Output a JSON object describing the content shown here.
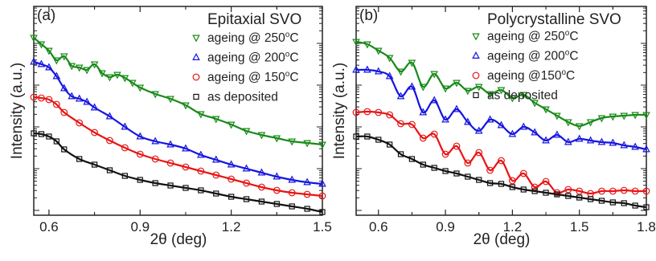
{
  "chart_data": [
    {
      "type": "line",
      "panel_tag": "(a)",
      "title": "Epitaxial SVO",
      "xlabel": "2θ (deg)",
      "ylabel": "Intensity (a.u.)",
      "y_scale": "log",
      "y_ticklabels": "none",
      "xlim": [
        0.55,
        1.5
      ],
      "xticks": [
        0.6,
        0.9,
        1.2,
        1.5
      ],
      "xtick_labels": [
        "0.6",
        "0.9",
        "1.2",
        "1.5"
      ],
      "legend_position": "top-right",
      "series": [
        {
          "name": "ageing @ 250°C",
          "label_main": "ageing @ 250",
          "label_sup": "o",
          "label_tail": "C",
          "color": "#178a17",
          "marker": "triangle-down",
          "x": [
            0.55,
            0.575,
            0.6,
            0.625,
            0.65,
            0.675,
            0.7,
            0.725,
            0.75,
            0.775,
            0.8,
            0.825,
            0.85,
            0.875,
            0.9,
            0.95,
            1.0,
            1.05,
            1.1,
            1.15,
            1.2,
            1.25,
            1.3,
            1.35,
            1.4,
            1.45,
            1.5
          ],
          "y": [
            47,
            55,
            63,
            75,
            70,
            82,
            84,
            87,
            80,
            91,
            96,
            93,
            97,
            103,
            109,
            117,
            123,
            131,
            142,
            148,
            155,
            163,
            168,
            172,
            176,
            178,
            180
          ]
        },
        {
          "name": "ageing @ 200°C",
          "label_main": "ageing @ 200",
          "label_sup": "o",
          "label_tail": "C",
          "color": "#1515e0",
          "marker": "triangle-up",
          "x": [
            0.55,
            0.575,
            0.6,
            0.625,
            0.65,
            0.675,
            0.7,
            0.725,
            0.75,
            0.8,
            0.85,
            0.9,
            0.95,
            1.0,
            1.05,
            1.1,
            1.15,
            1.2,
            1.25,
            1.3,
            1.35,
            1.4,
            1.45,
            1.5
          ],
          "y": [
            77,
            80,
            84,
            95,
            110,
            120,
            123,
            127,
            134,
            145,
            158,
            170,
            176,
            180,
            185,
            193,
            199,
            205,
            210,
            215,
            220,
            224,
            227,
            229
          ]
        },
        {
          "name": "ageing @ 150°C",
          "label_main": "ageing @ 150",
          "label_sup": "o",
          "label_tail": "C",
          "color": "#e81414",
          "marker": "circle",
          "x": [
            0.55,
            0.575,
            0.6,
            0.625,
            0.65,
            0.7,
            0.75,
            0.8,
            0.85,
            0.9,
            0.95,
            1.0,
            1.05,
            1.1,
            1.15,
            1.2,
            1.25,
            1.3,
            1.35,
            1.4,
            1.45,
            1.5
          ],
          "y": [
            121,
            122,
            124,
            130,
            140,
            153,
            165,
            175,
            184,
            192,
            198,
            203,
            208,
            213,
            218,
            223,
            228,
            233,
            237,
            240,
            242,
            244
          ]
        },
        {
          "name": "as deposited",
          "label_main": "as deposited",
          "label_sup": "",
          "label_tail": "",
          "color": "#111111",
          "marker": "square",
          "x": [
            0.55,
            0.575,
            0.6,
            0.625,
            0.65,
            0.7,
            0.75,
            0.8,
            0.85,
            0.9,
            0.95,
            1.0,
            1.05,
            1.1,
            1.15,
            1.2,
            1.25,
            1.3,
            1.35,
            1.4,
            1.45,
            1.5
          ],
          "y": [
            166,
            167,
            170,
            176,
            186,
            198,
            205,
            212,
            219,
            224,
            228,
            231,
            234,
            237,
            241,
            245,
            248,
            251,
            254,
            257,
            260,
            264
          ]
        }
      ]
    },
    {
      "type": "line",
      "panel_tag": "(b)",
      "title": "Polycrystalline SVO",
      "xlabel": "2θ (deg)",
      "ylabel": "Intensity (a.u.)",
      "y_scale": "log",
      "y_ticklabels": "none",
      "xlim": [
        0.5,
        1.8
      ],
      "xticks": [
        0.6,
        0.9,
        1.2,
        1.5,
        1.8
      ],
      "xtick_labels": [
        "0.6",
        "0.9",
        "1.2",
        "1.5",
        "1.8"
      ],
      "legend_position": "top-right",
      "series": [
        {
          "name": "ageing @ 250°C",
          "label_main": "ageing @ 250",
          "label_sup": "o",
          "label_tail": "C",
          "color": "#178a17",
          "marker": "triangle-down",
          "x": [
            0.5,
            0.55,
            0.6,
            0.65,
            0.7,
            0.75,
            0.8,
            0.85,
            0.9,
            0.95,
            1.0,
            1.05,
            1.1,
            1.15,
            1.2,
            1.25,
            1.3,
            1.35,
            1.4,
            1.45,
            1.5,
            1.55,
            1.6,
            1.65,
            1.7,
            1.75,
            1.8
          ],
          "y": [
            52,
            55,
            63,
            72,
            89,
            78,
            108,
            92,
            110,
            103,
            113,
            108,
            117,
            112,
            122,
            118,
            128,
            136,
            144,
            152,
            157,
            152,
            147,
            145,
            144,
            143,
            143
          ]
        },
        {
          "name": "ageing @ 200°C",
          "label_main": "ageing @ 200",
          "label_sup": "o",
          "label_tail": "C",
          "color": "#1515e0",
          "marker": "triangle-up",
          "x": [
            0.5,
            0.55,
            0.6,
            0.65,
            0.7,
            0.75,
            0.8,
            0.85,
            0.9,
            0.95,
            1.0,
            1.05,
            1.1,
            1.15,
            1.2,
            1.25,
            1.3,
            1.35,
            1.4,
            1.45,
            1.5,
            1.55,
            1.6,
            1.65,
            1.7,
            1.75,
            1.8
          ],
          "y": [
            87,
            87,
            89,
            95,
            120,
            108,
            140,
            125,
            149,
            136,
            152,
            163,
            149,
            156,
            167,
            158,
            165,
            175,
            168,
            177,
            173,
            175,
            177,
            178,
            181,
            183,
            186
          ]
        },
        {
          "name": "ageing @150°C",
          "label_main": "ageing @150",
          "label_sup": "o",
          "label_tail": "C",
          "color": "#e81414",
          "marker": "circle",
          "x": [
            0.5,
            0.55,
            0.6,
            0.65,
            0.7,
            0.75,
            0.8,
            0.85,
            0.9,
            0.95,
            1.0,
            1.05,
            1.1,
            1.15,
            1.2,
            1.25,
            1.3,
            1.35,
            1.4,
            1.45,
            1.5,
            1.55,
            1.6,
            1.65,
            1.7,
            1.75,
            1.8
          ],
          "y": [
            140,
            139,
            140,
            143,
            154,
            155,
            172,
            167,
            192,
            182,
            203,
            190,
            212,
            200,
            225,
            216,
            233,
            226,
            240,
            236,
            238,
            241,
            238,
            238,
            237,
            238,
            238
          ]
        },
        {
          "name": "as deposited",
          "label_main": "as deposited",
          "label_sup": "",
          "label_tail": "",
          "color": "#111111",
          "marker": "square",
          "x": [
            0.5,
            0.55,
            0.6,
            0.65,
            0.7,
            0.75,
            0.8,
            0.85,
            0.9,
            0.95,
            1.0,
            1.05,
            1.1,
            1.15,
            1.2,
            1.25,
            1.3,
            1.35,
            1.4,
            1.45,
            1.5,
            1.55,
            1.6,
            1.65,
            1.7,
            1.75,
            1.8
          ],
          "y": [
            170,
            170,
            174,
            180,
            192,
            198,
            205,
            209,
            213,
            216,
            220,
            224,
            228,
            229,
            233,
            236,
            238,
            240,
            242,
            244,
            246,
            248,
            250,
            252,
            253,
            256,
            258
          ]
        }
      ]
    }
  ]
}
